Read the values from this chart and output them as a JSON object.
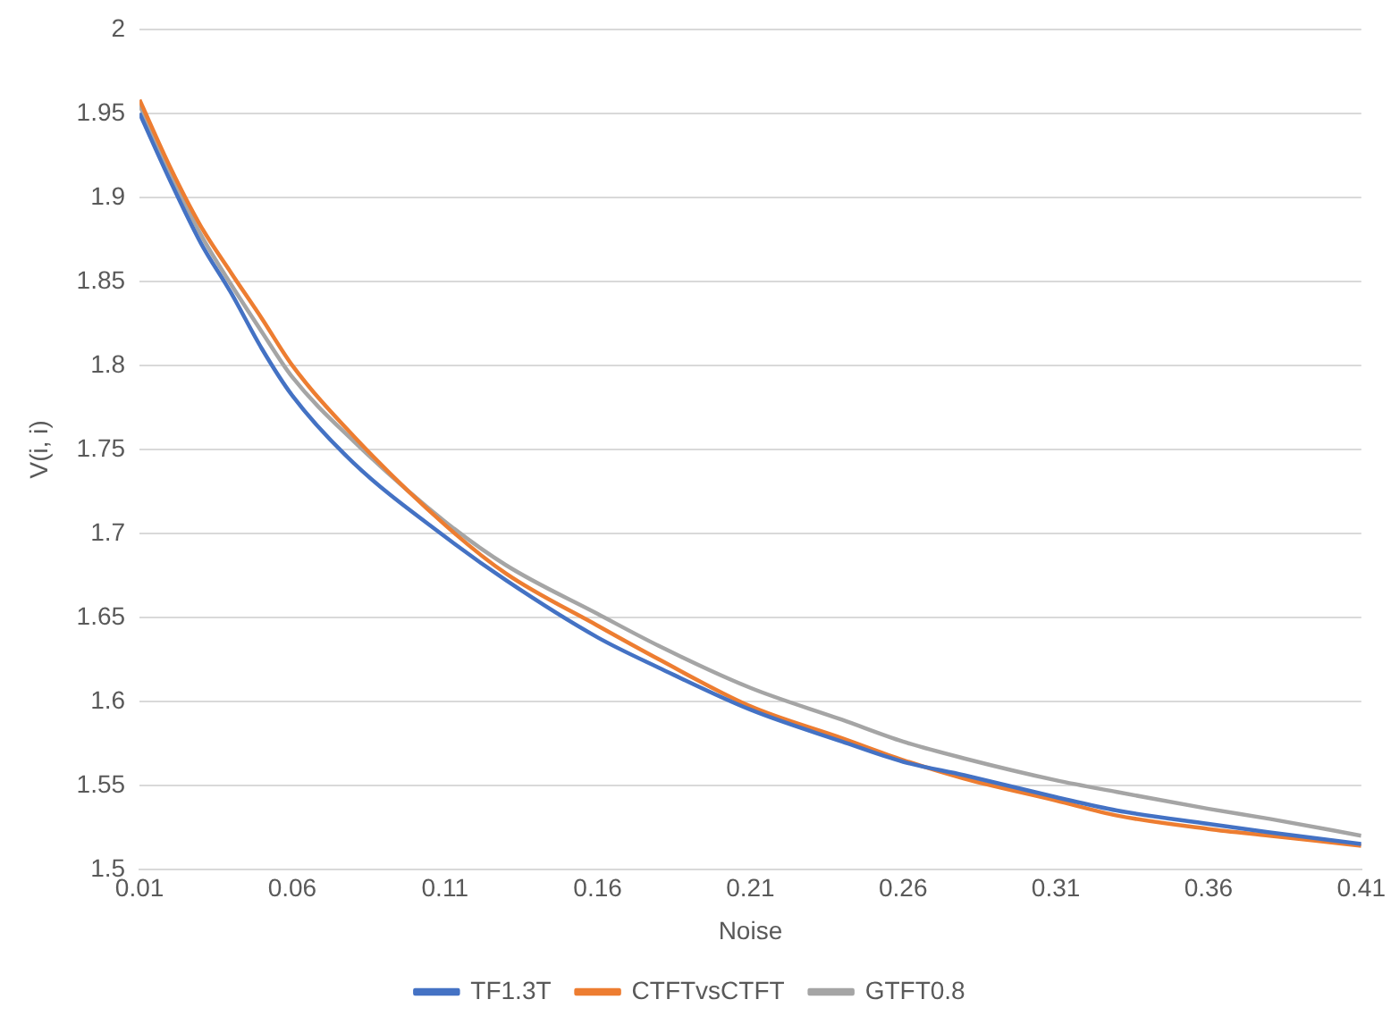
{
  "chart_data": {
    "type": "line",
    "xlabel": "Noise",
    "ylabel": "V(i, i)",
    "x": [
      0.01,
      0.02,
      0.03,
      0.04,
      0.05,
      0.06,
      0.08,
      0.11,
      0.13,
      0.16,
      0.18,
      0.21,
      0.24,
      0.26,
      0.28,
      0.31,
      0.33,
      0.36,
      0.38,
      0.41
    ],
    "series": [
      {
        "name": "TF1.3T",
        "color": "#4472c4",
        "values": [
          1.95,
          1.91,
          1.873,
          1.843,
          1.81,
          1.782,
          1.742,
          1.698,
          1.672,
          1.638,
          1.62,
          1.595,
          1.576,
          1.564,
          1.556,
          1.543,
          1.535,
          1.527,
          1.522,
          1.515
        ]
      },
      {
        "name": "CTFTvsCTFT",
        "color": "#ed7d31",
        "values": [
          1.958,
          1.918,
          1.883,
          1.855,
          1.828,
          1.8,
          1.758,
          1.705,
          1.676,
          1.645,
          1.625,
          1.597,
          1.578,
          1.565,
          1.554,
          1.541,
          1.532,
          1.524,
          1.52,
          1.514
        ]
      },
      {
        "name": "GTFT0.8",
        "color": "#a5a5a5",
        "values": [
          1.955,
          1.915,
          1.878,
          1.848,
          1.82,
          1.793,
          1.755,
          1.707,
          1.681,
          1.652,
          1.633,
          1.608,
          1.589,
          1.576,
          1.566,
          1.553,
          1.546,
          1.536,
          1.53,
          1.52
        ]
      }
    ],
    "xlim": [
      0.01,
      0.41
    ],
    "xticks": [
      0.01,
      0.06,
      0.11,
      0.16,
      0.21,
      0.26,
      0.31,
      0.36,
      0.41
    ],
    "ylim": [
      1.5,
      2
    ],
    "yticks": [
      1.5,
      1.55,
      1.6,
      1.65,
      1.7,
      1.75,
      1.8,
      1.85,
      1.9,
      1.95,
      2
    ],
    "grid": "y",
    "legend": "bottom",
    "marker": "none",
    "line_style": "solid"
  }
}
